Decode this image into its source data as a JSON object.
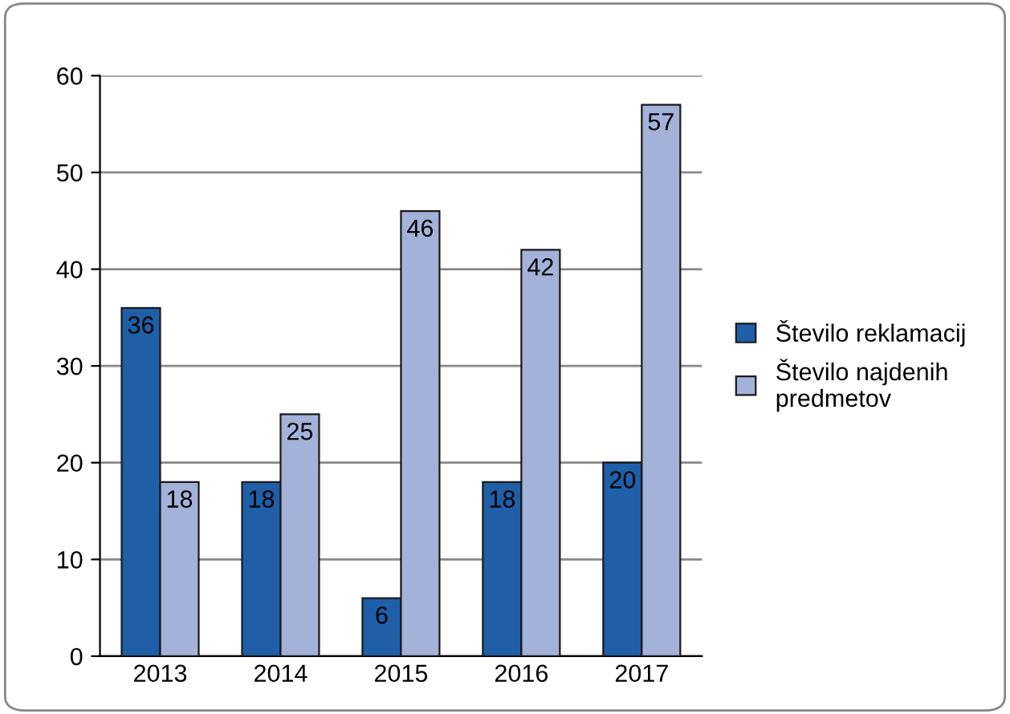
{
  "chart_data": {
    "type": "bar",
    "categories": [
      "2013",
      "2014",
      "2015",
      "2016",
      "2017"
    ],
    "series": [
      {
        "name": "Število reklamacij",
        "color": "#1f5fa8",
        "values": [
          36,
          18,
          6,
          18,
          20
        ]
      },
      {
        "name": "Število najdenih predmetov",
        "color": "#a4b2d9",
        "values": [
          18,
          25,
          46,
          42,
          57
        ]
      }
    ],
    "ylim": [
      0,
      60
    ],
    "yticks": [
      0,
      10,
      20,
      30,
      40,
      50,
      60
    ],
    "grid": "y",
    "legend": "right",
    "data_labels": true
  }
}
